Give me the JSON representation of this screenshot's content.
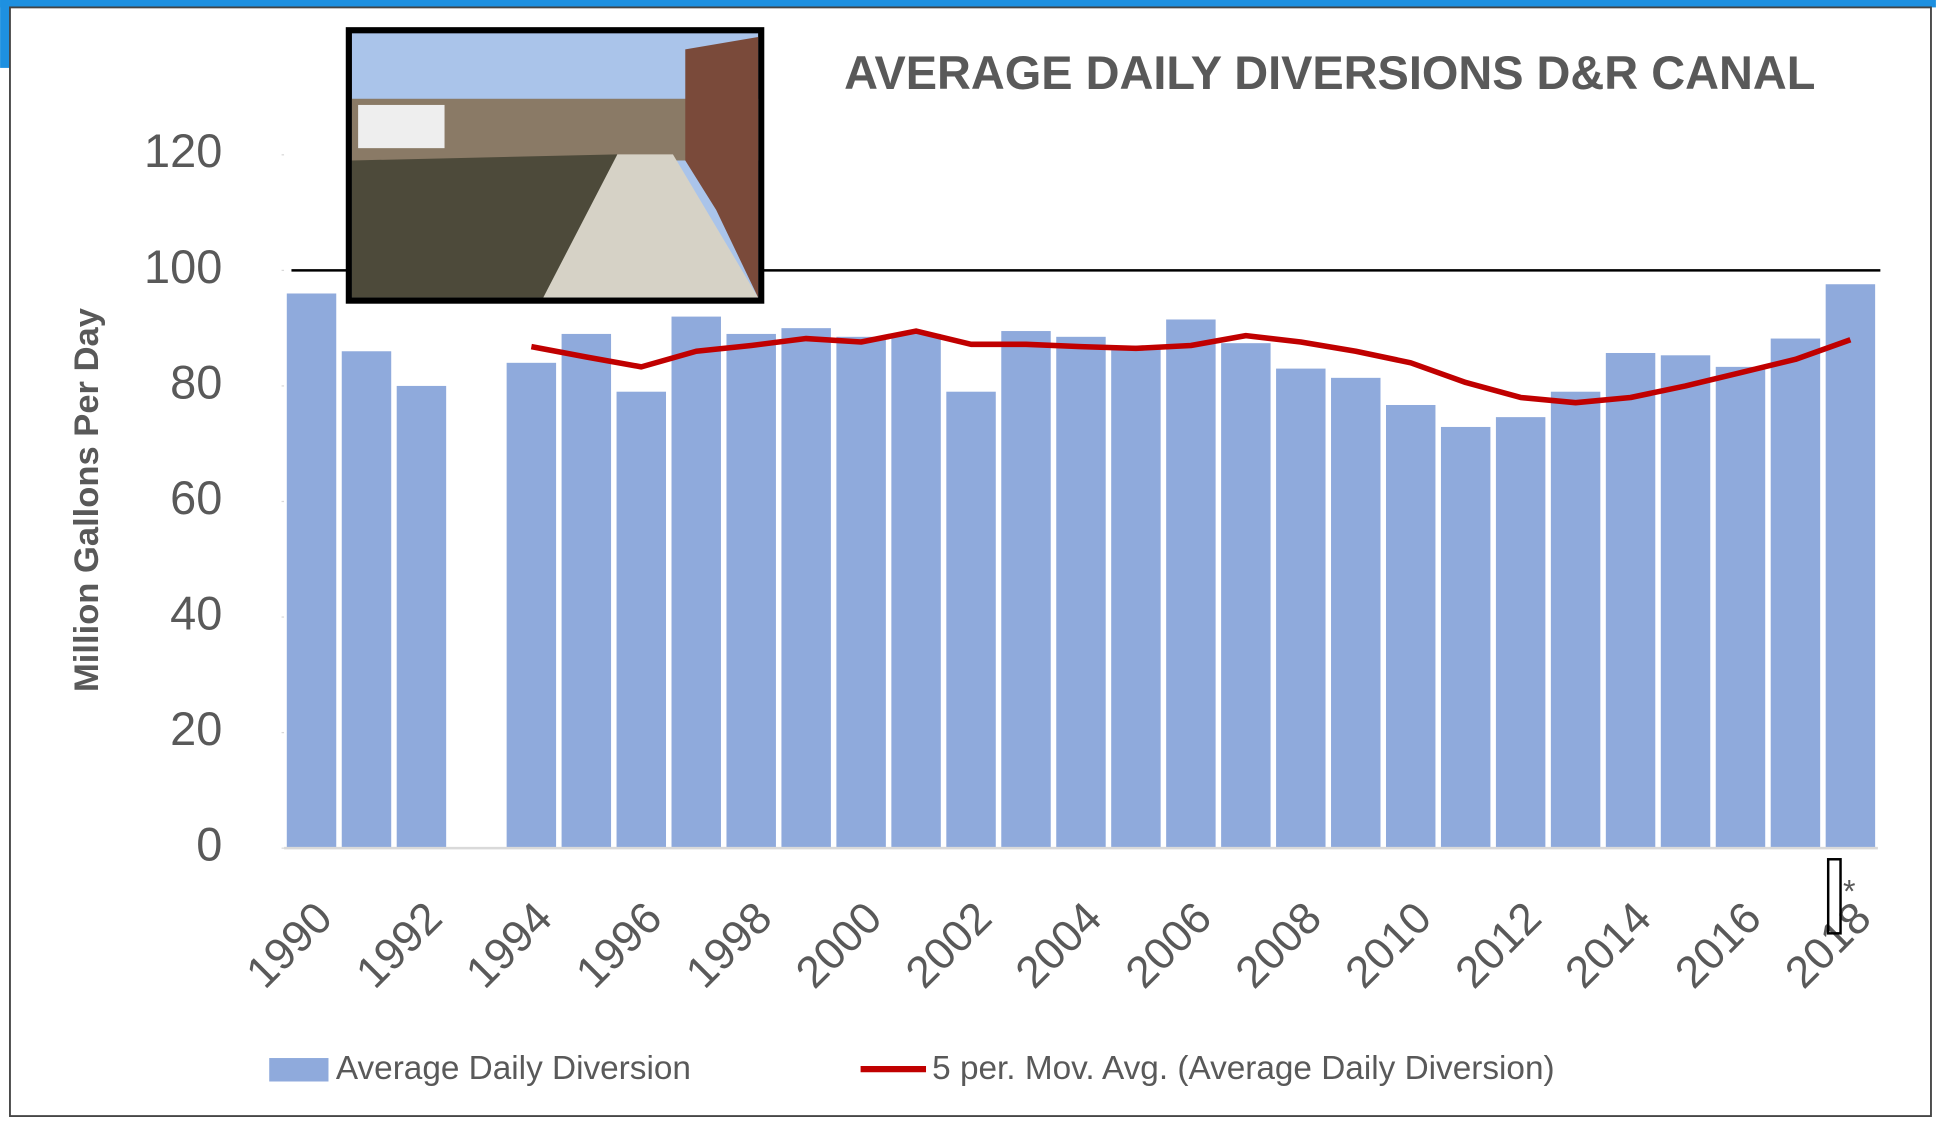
{
  "chart_data": {
    "type": "bar_line",
    "title": "AVERAGE DAILY DIVERSIONS D&R CANAL",
    "y_label": "Million Gallons Per Day",
    "categories": [
      "1990",
      null,
      "1992",
      null,
      "1994",
      null,
      "1996",
      null,
      "1998",
      null,
      "2000",
      null,
      "2002",
      null,
      "2004",
      null,
      "2006",
      null,
      "2008",
      null,
      "2010",
      null,
      "2012",
      null,
      "2014",
      null,
      "2016",
      null,
      "2018"
    ],
    "series": [
      {
        "name": "Average Daily Diversion",
        "color": "#8faadc",
        "type": "bar",
        "values": [
          96,
          86,
          80,
          null,
          84,
          89,
          79,
          92,
          89,
          90,
          88.5,
          89,
          79,
          89.5,
          88.5,
          87,
          91.5,
          87.4,
          83,
          81.4,
          76.7,
          72.9,
          74.6,
          79,
          85.7,
          85.3,
          83.3,
          88.2,
          97.6
        ]
      },
      {
        "name": "5 per. Mov. Avg. (Average Daily Diversion)",
        "color": "#c00000",
        "type": "line",
        "values": [
          null,
          null,
          null,
          null,
          86.8,
          85,
          83.3,
          86,
          87,
          88.2,
          87.6,
          89.5,
          87.2,
          87.2,
          86.8,
          86.5,
          87,
          88.7,
          87.6,
          86,
          84,
          80.6,
          78,
          77.1,
          78,
          80,
          82.3,
          84.6,
          88
        ]
      }
    ],
    "ylim": [
      0,
      120
    ],
    "yticks": [
      0,
      20,
      40,
      60,
      80,
      100,
      120
    ],
    "reference_line": 100,
    "annotation": "*",
    "legend": "bottom"
  }
}
